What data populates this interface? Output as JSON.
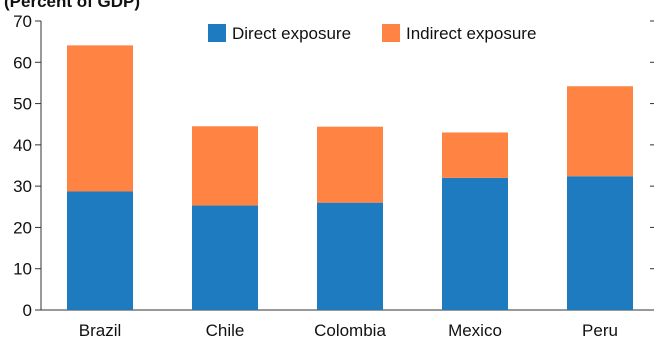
{
  "chart_data": {
    "type": "bar",
    "stacked": true,
    "subtitle": "(Percent of GDP)",
    "categories": [
      "Brazil",
      "Chile",
      "Colombia",
      "Mexico",
      "Peru"
    ],
    "series": [
      {
        "name": "Direct exposure",
        "color": "#1f7bbf",
        "values": [
          28.7,
          25.3,
          26.0,
          32.0,
          32.4
        ]
      },
      {
        "name": "Indirect exposure",
        "color": "#ff8342",
        "values": [
          35.4,
          19.2,
          18.4,
          11.0,
          21.8
        ]
      }
    ],
    "ylim": [
      0,
      70
    ],
    "yticks": [
      0,
      10,
      20,
      30,
      40,
      50,
      60,
      70
    ],
    "grid": false,
    "legend_position": "top-right"
  }
}
